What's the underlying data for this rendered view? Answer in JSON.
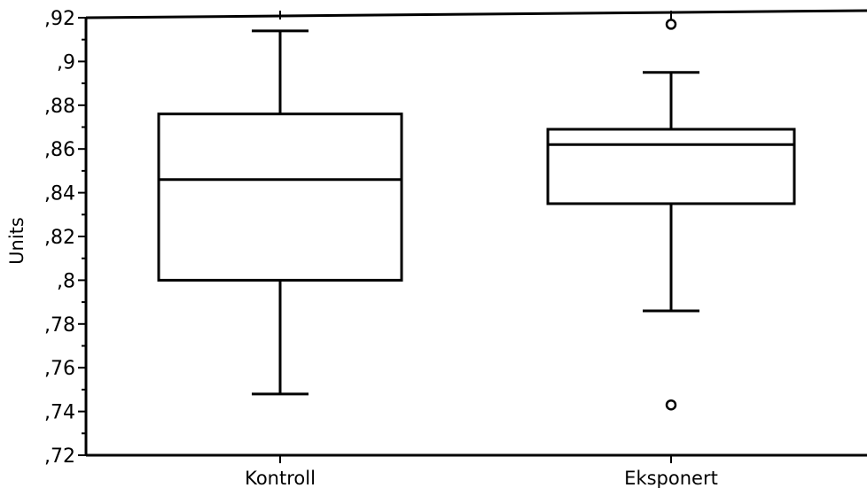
{
  "chart_data": {
    "type": "box",
    "ylabel": "Units",
    "xlabel": "",
    "ylim": [
      0.72,
      0.92
    ],
    "y_ticks": [
      0.72,
      0.74,
      0.76,
      0.78,
      0.8,
      0.82,
      0.84,
      0.86,
      0.88,
      0.9,
      0.92
    ],
    "y_tick_labels": [
      ",72",
      ",74",
      ",76",
      ",78",
      ",8",
      ",82",
      ",84",
      ",86",
      ",88",
      ",9",
      ",92"
    ],
    "grid": false,
    "categories": [
      "Kontroll",
      "Eksponert"
    ],
    "boxes": [
      {
        "category": "Kontroll",
        "whisker_low": 0.748,
        "q1": 0.8,
        "median": 0.846,
        "q3": 0.876,
        "whisker_high": 0.914,
        "outliers": []
      },
      {
        "category": "Eksponert",
        "whisker_low": 0.786,
        "q1": 0.835,
        "median": 0.862,
        "q3": 0.869,
        "whisker_high": 0.895,
        "outliers": [
          0.917,
          0.743
        ]
      }
    ]
  }
}
